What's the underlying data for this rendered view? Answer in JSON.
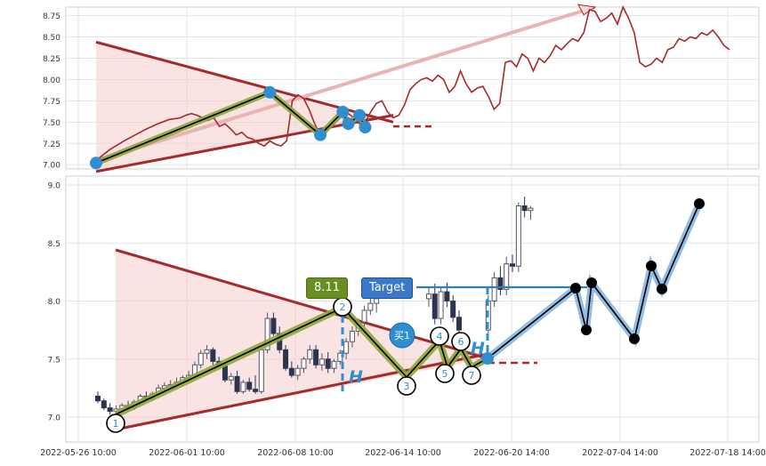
{
  "chart_data": [
    {
      "type": "line",
      "name": "top-panel",
      "yticks": [
        "7.00",
        "7.25",
        "7.50",
        "7.75",
        "8.00",
        "8.25",
        "8.50",
        "8.75"
      ],
      "ylim": [
        6.95,
        8.85
      ],
      "grid": true,
      "series": [
        {
          "color": "#a52a2a",
          "points": [
            [
              0.0,
              7.05
            ],
            [
              5,
              7.18
            ],
            [
              10,
              7.28
            ],
            [
              14,
              7.35
            ],
            [
              18,
              7.42
            ],
            [
              22,
              7.48
            ],
            [
              26,
              7.53
            ],
            [
              30,
              7.55
            ],
            [
              32,
              7.58
            ],
            [
              34,
              7.6
            ],
            [
              36,
              7.58
            ],
            [
              38,
              7.55
            ],
            [
              40,
              7.52
            ],
            [
              42,
              7.55
            ],
            [
              44,
              7.45
            ],
            [
              46,
              7.48
            ],
            [
              48,
              7.42
            ],
            [
              50,
              7.35
            ],
            [
              52,
              7.38
            ],
            [
              54,
              7.32
            ],
            [
              56,
              7.3
            ],
            [
              58,
              7.25
            ],
            [
              60,
              7.22
            ],
            [
              62,
              7.28
            ],
            [
              64,
              7.24
            ],
            [
              66,
              7.22
            ],
            [
              68,
              7.28
            ],
            [
              70,
              7.75
            ],
            [
              72,
              7.82
            ],
            [
              74,
              7.78
            ],
            [
              76,
              7.65
            ],
            [
              78,
              7.48
            ],
            [
              80,
              7.35
            ],
            [
              82,
              7.38
            ],
            [
              84,
              7.45
            ],
            [
              86,
              7.52
            ],
            [
              88,
              7.58
            ],
            [
              90,
              7.6
            ],
            [
              92,
              7.55
            ],
            [
              94,
              7.48
            ],
            [
              96,
              7.5
            ],
            [
              98,
              7.62
            ],
            [
              100,
              7.72
            ],
            [
              102,
              7.75
            ],
            [
              104,
              7.62
            ],
            [
              106,
              7.55
            ],
            [
              108,
              7.58
            ],
            [
              110,
              7.7
            ],
            [
              112,
              7.88
            ],
            [
              114,
              7.95
            ],
            [
              116,
              8.0
            ],
            [
              118,
              8.02
            ],
            [
              120,
              7.98
            ],
            [
              122,
              8.05
            ],
            [
              124,
              8.0
            ],
            [
              126,
              7.85
            ],
            [
              128,
              7.92
            ],
            [
              130,
              8.1
            ],
            [
              132,
              7.95
            ],
            [
              134,
              7.85
            ],
            [
              136,
              7.9
            ],
            [
              138,
              7.92
            ],
            [
              140,
              7.8
            ],
            [
              142,
              7.65
            ],
            [
              144,
              7.72
            ],
            [
              146,
              8.2
            ],
            [
              148,
              8.22
            ],
            [
              150,
              8.15
            ],
            [
              152,
              8.3
            ],
            [
              154,
              8.25
            ],
            [
              156,
              8.1
            ],
            [
              158,
              8.25
            ],
            [
              160,
              8.2
            ],
            [
              162,
              8.28
            ],
            [
              164,
              8.4
            ],
            [
              166,
              8.35
            ],
            [
              168,
              8.42
            ],
            [
              170,
              8.48
            ],
            [
              172,
              8.45
            ],
            [
              174,
              8.55
            ],
            [
              176,
              8.82
            ],
            [
              178,
              8.8
            ],
            [
              180,
              8.68
            ],
            [
              182,
              8.72
            ],
            [
              184,
              8.78
            ],
            [
              186,
              8.65
            ],
            [
              188,
              8.85
            ],
            [
              190,
              8.72
            ],
            [
              192,
              8.55
            ],
            [
              194,
              8.2
            ],
            [
              196,
              8.15
            ],
            [
              198,
              8.18
            ],
            [
              200,
              8.25
            ],
            [
              202,
              8.2
            ],
            [
              204,
              8.35
            ],
            [
              206,
              8.38
            ],
            [
              208,
              8.48
            ],
            [
              210,
              8.45
            ],
            [
              212,
              8.5
            ],
            [
              214,
              8.48
            ],
            [
              216,
              8.55
            ],
            [
              218,
              8.52
            ],
            [
              220,
              8.58
            ],
            [
              222,
              8.5
            ],
            [
              224,
              8.4
            ],
            [
              226,
              8.35
            ]
          ]
        }
      ],
      "pattern_points": [
        [
          0,
          7.02
        ],
        [
          62,
          7.85
        ],
        [
          80,
          7.35
        ],
        [
          88,
          7.62
        ],
        [
          90,
          7.48
        ],
        [
          94,
          7.58
        ],
        [
          96,
          7.44
        ]
      ]
    },
    {
      "type": "candlestick",
      "name": "bottom-panel",
      "yticks": [
        "7.0",
        "7.5",
        "8.0",
        "8.5",
        "9.0"
      ],
      "ylim": [
        6.8,
        9.05
      ],
      "xticks": [
        "2022-05-26 10:00",
        "2022-06-01 10:00",
        "2022-06-08 10:00",
        "2022-06-14 10:00",
        "2022-06-20 14:00",
        "2022-07-04 14:00",
        "2022-07-18 14:00"
      ],
      "grid": true,
      "labels": {
        "price_badge": "8.11",
        "target_badge": "Target",
        "buy_marker": "买1",
        "h_label": "H",
        "pivots": [
          "1",
          "2",
          "3",
          "4",
          "5",
          "6",
          "7"
        ]
      },
      "candles": [
        [
          0,
          7.18,
          7.22,
          7.12,
          7.14
        ],
        [
          1,
          7.14,
          7.16,
          7.06,
          7.08
        ],
        [
          2,
          7.08,
          7.12,
          7.02,
          7.05
        ],
        [
          3,
          7.05,
          7.1,
          7.02,
          7.07
        ],
        [
          4,
          7.07,
          7.12,
          7.05,
          7.1
        ],
        [
          5,
          7.1,
          7.14,
          7.06,
          7.08
        ],
        [
          6,
          7.08,
          7.15,
          7.06,
          7.13
        ],
        [
          7,
          7.13,
          7.2,
          7.1,
          7.18
        ],
        [
          8,
          7.18,
          7.22,
          7.14,
          7.16
        ],
        [
          9,
          7.16,
          7.22,
          7.14,
          7.2
        ],
        [
          10,
          7.2,
          7.28,
          7.18,
          7.25
        ],
        [
          11,
          7.25,
          7.3,
          7.22,
          7.27
        ],
        [
          12,
          7.27,
          7.32,
          7.24,
          7.28
        ],
        [
          13,
          7.28,
          7.34,
          7.25,
          7.3
        ],
        [
          14,
          7.3,
          7.36,
          7.28,
          7.34
        ],
        [
          15,
          7.34,
          7.4,
          7.3,
          7.36
        ],
        [
          16,
          7.36,
          7.48,
          7.34,
          7.45
        ],
        [
          17,
          7.45,
          7.58,
          7.42,
          7.55
        ],
        [
          18,
          7.55,
          7.62,
          7.5,
          7.58
        ],
        [
          19,
          7.58,
          7.6,
          7.45,
          7.48
        ],
        [
          20,
          7.48,
          7.52,
          7.42,
          7.44
        ],
        [
          21,
          7.44,
          7.46,
          7.3,
          7.32
        ],
        [
          22,
          7.32,
          7.38,
          7.28,
          7.35
        ],
        [
          23,
          7.35,
          7.4,
          7.2,
          7.22
        ],
        [
          24,
          7.22,
          7.32,
          7.2,
          7.3
        ],
        [
          25,
          7.3,
          7.34,
          7.22,
          7.24
        ],
        [
          26,
          7.24,
          7.36,
          7.2,
          7.22
        ],
        [
          27,
          7.22,
          7.6,
          7.2,
          7.58
        ],
        [
          28,
          7.58,
          7.9,
          7.55,
          7.85
        ],
        [
          29,
          7.85,
          7.9,
          7.7,
          7.72
        ],
        [
          30,
          7.72,
          7.78,
          7.55,
          7.58
        ],
        [
          31,
          7.58,
          7.62,
          7.4,
          7.42
        ],
        [
          32,
          7.42,
          7.48,
          7.34,
          7.36
        ],
        [
          33,
          7.36,
          7.45,
          7.32,
          7.42
        ],
        [
          34,
          7.42,
          7.52,
          7.38,
          7.5
        ],
        [
          35,
          7.5,
          7.62,
          7.46,
          7.58
        ],
        [
          36,
          7.58,
          7.62,
          7.42,
          7.45
        ],
        [
          37,
          7.45,
          7.55,
          7.4,
          7.5
        ],
        [
          38,
          7.5,
          7.56,
          7.38,
          7.42
        ],
        [
          39,
          7.42,
          7.5,
          7.38,
          7.48
        ],
        [
          40,
          7.48,
          7.58,
          7.45,
          7.55
        ],
        [
          41,
          7.55,
          7.68,
          7.5,
          7.65
        ],
        [
          42,
          7.65,
          7.78,
          7.6,
          7.74
        ],
        [
          43,
          7.74,
          7.85,
          7.7,
          7.82
        ],
        [
          44,
          7.82,
          7.96,
          7.78,
          7.92
        ],
        [
          45,
          7.92,
          8.02,
          7.88,
          7.98
        ],
        [
          46,
          7.98,
          8.08,
          7.9,
          8.02
        ],
        [
          47,
          8.02,
          8.12,
          7.95,
          8.06
        ],
        [
          48,
          8.06,
          8.15,
          7.8,
          7.85
        ],
        [
          49,
          7.85,
          8.12,
          7.8,
          8.08
        ],
        [
          50,
          8.08,
          8.16,
          7.95,
          8.0
        ],
        [
          51,
          8.0,
          8.05,
          7.82,
          7.86
        ],
        [
          52,
          7.86,
          7.92,
          7.7,
          7.75
        ],
        [
          53,
          7.75,
          8.05,
          7.72,
          8.0
        ],
        [
          54,
          8.0,
          8.25,
          7.95,
          8.2
        ],
        [
          55,
          8.2,
          8.3,
          8.05,
          8.1
        ],
        [
          56,
          8.1,
          8.38,
          8.05,
          8.32
        ],
        [
          57,
          8.32,
          8.4,
          8.25,
          8.3
        ],
        [
          58,
          8.3,
          8.85,
          8.25,
          8.82
        ],
        [
          59,
          8.82,
          8.9,
          8.72,
          8.78
        ],
        [
          60,
          8.78,
          8.82,
          8.7,
          8.8
        ]
      ],
      "pattern_points": [
        [
          1,
          6.95
        ],
        [
          28,
          7.95
        ],
        [
          40,
          7.28
        ],
        [
          46,
          7.68
        ],
        [
          49,
          7.38
        ],
        [
          51,
          7.68
        ],
        [
          54,
          7.38
        ],
        [
          58,
          7.48
        ]
      ],
      "extension_points": [
        [
          78,
          8.1
        ],
        [
          80,
          7.75
        ],
        [
          83,
          8.15
        ],
        [
          91,
          7.68
        ],
        [
          95,
          8.3
        ],
        [
          97,
          8.1
        ],
        [
          103,
          8.83
        ]
      ],
      "buy_point": [
        57,
        7.72
      ],
      "target_level": 8.11
    }
  ]
}
